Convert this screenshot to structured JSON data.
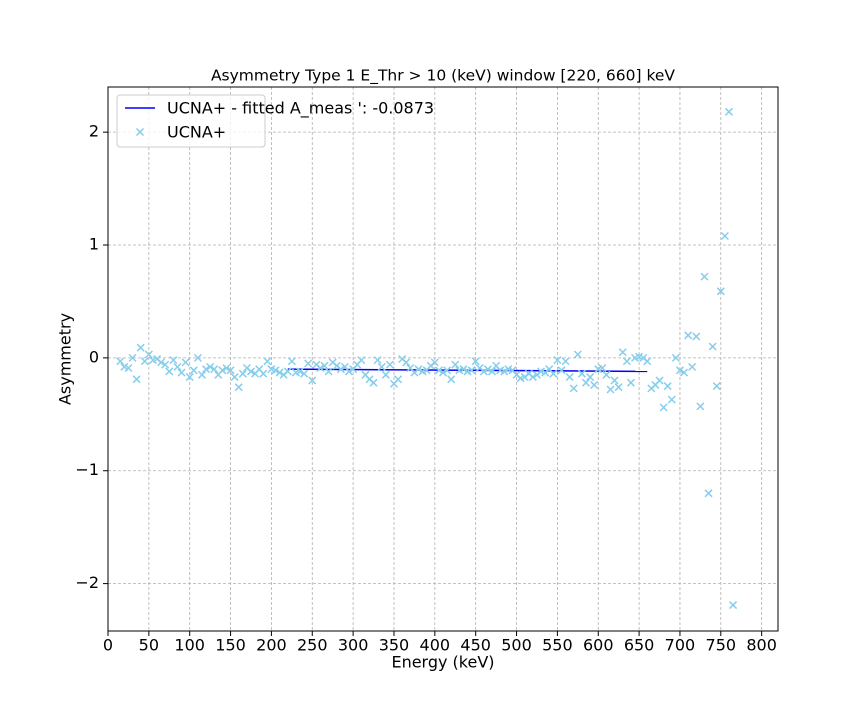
{
  "chart_data": {
    "type": "scatter",
    "title": "Asymmetry Type 1 E_Thr > 10 (keV) window [220, 660] keV",
    "xlabel": "Energy (keV)",
    "ylabel": "Asymmetry",
    "xlim": [
      0,
      820
    ],
    "ylim": [
      -2.42,
      2.4
    ],
    "xticks": [
      0,
      50,
      100,
      150,
      200,
      250,
      300,
      350,
      400,
      450,
      500,
      550,
      600,
      650,
      700,
      750,
      800
    ],
    "yticks": [
      {
        "value": -2,
        "label": "−2"
      },
      {
        "value": -1,
        "label": "−1"
      },
      0,
      1,
      2
    ],
    "grid": true,
    "legend": "upper left",
    "series": [
      {
        "name": "UCNA+ - fitted A_meas ': -0.0873",
        "type": "line",
        "color": "#0000ff",
        "x": [
          220,
          660
        ],
        "values": [
          -0.1,
          -0.12
        ]
      },
      {
        "name": "UCNA+",
        "type": "scatter",
        "color": "#87ceeb",
        "x": [
          15,
          20,
          25,
          30,
          35,
          40,
          45,
          50,
          55,
          60,
          65,
          70,
          75,
          80,
          85,
          90,
          95,
          100,
          105,
          110,
          115,
          120,
          125,
          130,
          135,
          140,
          145,
          150,
          155,
          160,
          165,
          170,
          175,
          180,
          185,
          190,
          195,
          200,
          205,
          210,
          215,
          220,
          225,
          230,
          235,
          240,
          245,
          250,
          255,
          260,
          265,
          270,
          275,
          280,
          285,
          290,
          295,
          300,
          305,
          310,
          315,
          320,
          325,
          330,
          335,
          340,
          345,
          350,
          355,
          360,
          365,
          370,
          375,
          380,
          385,
          390,
          395,
          400,
          405,
          410,
          415,
          420,
          425,
          430,
          435,
          440,
          445,
          450,
          455,
          460,
          465,
          470,
          475,
          480,
          485,
          490,
          495,
          500,
          505,
          510,
          515,
          520,
          525,
          530,
          535,
          540,
          545,
          550,
          555,
          560,
          565,
          570,
          575,
          580,
          585,
          590,
          595,
          600,
          605,
          610,
          615,
          620,
          625,
          630,
          635,
          640,
          645,
          650,
          655,
          660,
          665,
          670,
          675,
          680,
          685,
          690,
          695,
          700,
          705,
          710,
          715,
          720,
          725,
          730,
          735,
          740,
          745,
          750,
          755,
          760,
          765
        ],
        "values": [
          -0.03,
          -0.08,
          -0.09,
          0.0,
          -0.19,
          0.09,
          -0.03,
          0.03,
          -0.02,
          -0.01,
          -0.04,
          -0.06,
          -0.12,
          -0.02,
          -0.08,
          -0.13,
          -0.04,
          -0.17,
          -0.11,
          0.0,
          -0.15,
          -0.1,
          -0.08,
          -0.1,
          -0.15,
          -0.11,
          -0.09,
          -0.11,
          -0.17,
          -0.26,
          -0.14,
          -0.09,
          -0.12,
          -0.14,
          -0.1,
          -0.14,
          -0.03,
          -0.1,
          -0.11,
          -0.13,
          -0.15,
          -0.12,
          -0.03,
          -0.13,
          -0.12,
          -0.14,
          -0.05,
          -0.2,
          -0.06,
          -0.09,
          -0.07,
          -0.12,
          -0.04,
          -0.07,
          -0.1,
          -0.08,
          -0.12,
          -0.1,
          -0.06,
          -0.02,
          -0.15,
          -0.19,
          -0.22,
          -0.02,
          -0.08,
          -0.15,
          -0.06,
          -0.23,
          -0.19,
          -0.01,
          -0.04,
          -0.09,
          -0.13,
          -0.1,
          -0.12,
          -0.11,
          -0.07,
          -0.04,
          -0.11,
          -0.13,
          -0.11,
          -0.19,
          -0.06,
          -0.11,
          -0.1,
          -0.12,
          -0.11,
          -0.03,
          -0.09,
          -0.12,
          -0.1,
          -0.12,
          -0.07,
          -0.11,
          -0.12,
          -0.1,
          -0.11,
          -0.15,
          -0.18,
          -0.17,
          -0.14,
          -0.17,
          -0.15,
          -0.12,
          -0.13,
          -0.1,
          -0.14,
          -0.02,
          -0.11,
          -0.03,
          -0.17,
          -0.27,
          0.03,
          -0.14,
          -0.22,
          -0.17,
          -0.24,
          -0.1,
          -0.09,
          -0.15,
          -0.28,
          -0.2,
          -0.26,
          0.05,
          -0.03,
          -0.22,
          0.0,
          0.01,
          0.0,
          -0.03,
          -0.27,
          -0.24,
          -0.2,
          -0.44,
          -0.25,
          -0.37,
          0.0,
          -0.11,
          -0.13,
          0.2,
          -0.08,
          0.19,
          -0.43,
          0.72,
          -1.2,
          0.1,
          -0.25,
          0.59,
          1.08,
          2.18,
          -2.19
        ]
      }
    ]
  }
}
